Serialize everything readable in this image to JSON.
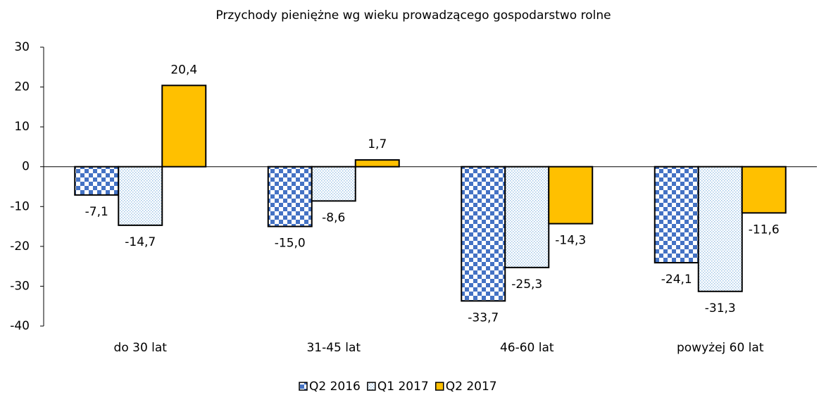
{
  "chart_data": {
    "type": "bar",
    "title": "Przychody pieniężne wg wieku prowadzącego gospodarstwo rolne",
    "categories": [
      "do 30 lat",
      "31-45 lat",
      "46-60 lat",
      "powyżej 60 lat"
    ],
    "series": [
      {
        "name": "Q2 2016",
        "color": "#4472c4",
        "pattern": "checker",
        "values": [
          -7.1,
          -15.0,
          -33.7,
          -24.1
        ],
        "value_labels": [
          "-7,1",
          "-15,0",
          "-33,7",
          "-24,1"
        ]
      },
      {
        "name": "Q1 2017",
        "color": "#9dc3e6",
        "pattern": "dots",
        "values": [
          -14.7,
          -8.6,
          -25.3,
          -31.3
        ],
        "value_labels": [
          "-14,7",
          "-8,6",
          "-25,3",
          "-31,3"
        ]
      },
      {
        "name": "Q2 2017",
        "color": "#ffc000",
        "pattern": "solid",
        "values": [
          20.4,
          1.7,
          -14.3,
          -11.6
        ],
        "value_labels": [
          "20,4",
          "1,7",
          "-14,3",
          "-11,6"
        ]
      }
    ],
    "ylim": [
      -40,
      30
    ],
    "yticks": [
      -40,
      -30,
      -20,
      -10,
      0,
      10,
      20,
      30
    ],
    "legend": "bottom"
  }
}
